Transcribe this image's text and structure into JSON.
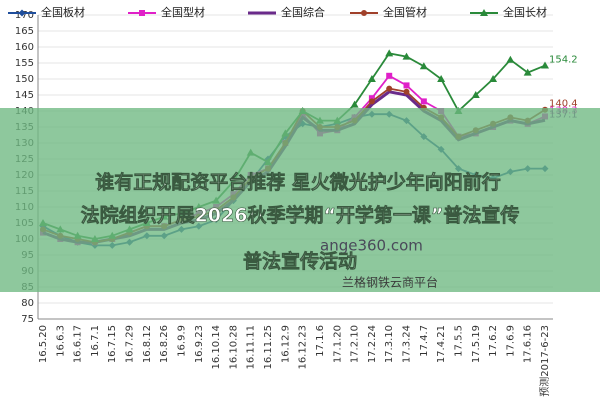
{
  "chart_data": {
    "type": "line",
    "categories": [
      "16.5.20",
      "16.6.3",
      "16.6.17",
      "16.7.1",
      "16.7.15",
      "16.7.29",
      "16.8.12",
      "16.8.26",
      "16.9.9",
      "16.9.23",
      "16.10.14",
      "16.10.28",
      "16.11.11",
      "16.11.25",
      "16.12.9",
      "16.12.23",
      "17.1.6",
      "17.1.20",
      "17.2.10",
      "17.2.24",
      "17.3.10",
      "17.3.24",
      "17.4.7",
      "17.4.21",
      "17.5.5",
      "17.5.19",
      "17.6.2",
      "17.6.9",
      "17.6.16",
      "预测2017-6-23"
    ],
    "series": [
      {
        "name": "全国板材",
        "color": "#1f4e9c",
        "marker": "diamond",
        "values": [
          104,
          101,
          99,
          98,
          98,
          99,
          101,
          101,
          103,
          104,
          106,
          112,
          118,
          125,
          132,
          136,
          135,
          136,
          138,
          139,
          139,
          137,
          132,
          128,
          122,
          120,
          119,
          121,
          122,
          122
        ]
      },
      {
        "name": "全国型材",
        "color": "#e020c8",
        "marker": "square",
        "values": [
          102,
          100,
          99,
          99,
          100,
          102,
          104,
          104,
          106,
          108,
          110,
          114,
          120,
          122,
          130,
          139,
          133,
          134,
          138,
          144,
          151,
          148,
          143,
          140,
          132,
          133,
          135,
          137,
          136,
          138.3
        ]
      },
      {
        "name": "全国综合",
        "color": "#6a2a8a",
        "marker": "none",
        "values": [
          102,
          100,
          99,
          99,
          100,
          101,
          103,
          103,
          105,
          106,
          108,
          112,
          118,
          121,
          129,
          138,
          134,
          134,
          136,
          142,
          146,
          145,
          140,
          137,
          131,
          133,
          135,
          137,
          136,
          137.1
        ]
      },
      {
        "name": "全国管材",
        "color": "#a0402a",
        "marker": "circle",
        "values": [
          103,
          101,
          100,
          99,
          100,
          102,
          104,
          104,
          106,
          107,
          109,
          113,
          119,
          122,
          130,
          140,
          135,
          135,
          137,
          143,
          147,
          146,
          141,
          138,
          132,
          134,
          136,
          138,
          137,
          140.4
        ]
      },
      {
        "name": "全国长材",
        "color": "#2a8a3a",
        "marker": "triangle",
        "values": [
          105,
          103,
          101,
          100,
          101,
          103,
          105,
          107,
          108,
          110,
          112,
          118,
          127,
          124,
          133,
          140,
          137,
          137,
          142,
          150,
          158,
          157,
          154,
          150,
          140,
          145,
          150,
          156,
          152,
          154.2
        ]
      }
    ],
    "end_labels": [
      4,
      3,
      1,
      2
    ],
    "ylim": [
      75,
      170
    ],
    "yticks": [
      75,
      80,
      85,
      90,
      95,
      100,
      105,
      110,
      115,
      120,
      125,
      130,
      135,
      140,
      145,
      150,
      155,
      160,
      165,
      170
    ],
    "grid": true
  },
  "overlay": {
    "headline": [
      "谁有正规配资平台推荐 星火微光护少年向阳前行",
      "法院组织开展2026秋季学期“开学第一课”普法宣传",
      "普法宣传活动"
    ],
    "watermark": [
      "ange360.com",
      "兰格钢铁云商平台"
    ]
  }
}
